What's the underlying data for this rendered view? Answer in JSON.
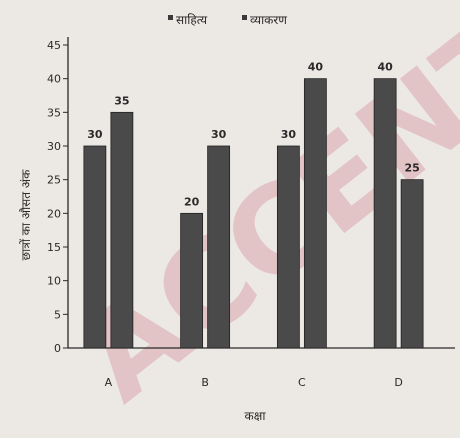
{
  "chart_data": {
    "type": "bar",
    "title": "",
    "categories": [
      "A",
      "B",
      "C",
      "D"
    ],
    "series": [
      {
        "name": "साहित्य",
        "values": [
          30,
          20,
          30,
          40
        ]
      },
      {
        "name": "व्याकरण",
        "values": [
          35,
          30,
          40,
          25
        ]
      }
    ],
    "xlabel": "कक्षा",
    "ylabel": "छात्रों का औसत अंक",
    "ylim": [
      0,
      45
    ],
    "yticks": [
      0,
      5,
      10,
      15,
      20,
      25,
      30,
      35,
      40,
      45
    ],
    "grid": false,
    "legend_position": "top-center",
    "bar_color": "#4a4a4a"
  },
  "watermark": {
    "text": "ACCENTS",
    "color": "#c0425e"
  }
}
